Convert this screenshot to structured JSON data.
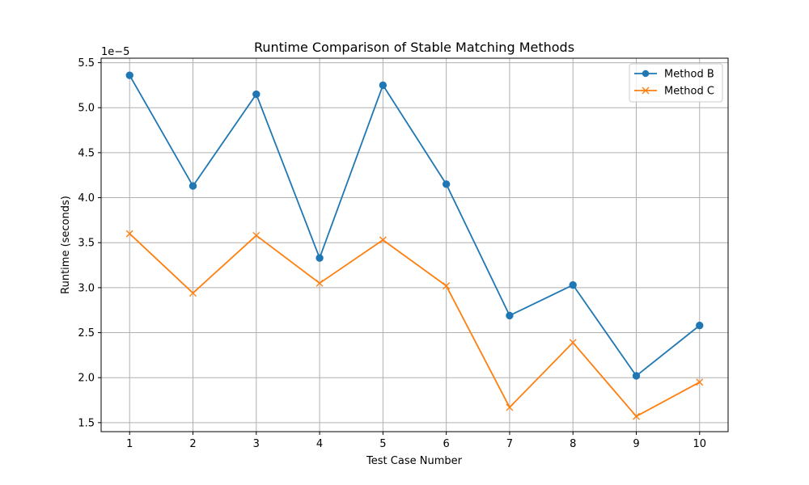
{
  "chart_data": {
    "type": "line",
    "title": "Runtime Comparison of Stable Matching Methods",
    "xlabel": "Test Case Number",
    "ylabel": "Runtime (seconds)",
    "y_offset_label": "1e−5",
    "y_scale": 1e-05,
    "x": [
      1,
      2,
      3,
      4,
      5,
      6,
      7,
      8,
      9,
      10
    ],
    "xlim": [
      0.55,
      10.45
    ],
    "ylim": [
      1.4,
      5.55
    ],
    "yticks": [
      1.5,
      2.0,
      2.5,
      3.0,
      3.5,
      4.0,
      4.5,
      5.0,
      5.5
    ],
    "ytick_labels": [
      "1.5",
      "2.0",
      "2.5",
      "3.0",
      "3.5",
      "4.0",
      "4.5",
      "5.0",
      "5.5"
    ],
    "xtick_labels": [
      "1",
      "2",
      "3",
      "4",
      "5",
      "6",
      "7",
      "8",
      "9",
      "10"
    ],
    "grid": true,
    "legend_position": "top-right",
    "series": [
      {
        "name": "Method B",
        "color": "#1f77b4",
        "marker": "circle",
        "values": [
          5.36,
          4.13,
          5.15,
          3.33,
          5.25,
          4.15,
          2.69,
          3.03,
          2.02,
          2.58
        ]
      },
      {
        "name": "Method C",
        "color": "#ff7f0e",
        "marker": "x",
        "values": [
          3.6,
          2.94,
          3.58,
          3.05,
          3.53,
          3.02,
          1.67,
          2.39,
          1.57,
          1.95
        ]
      }
    ]
  }
}
